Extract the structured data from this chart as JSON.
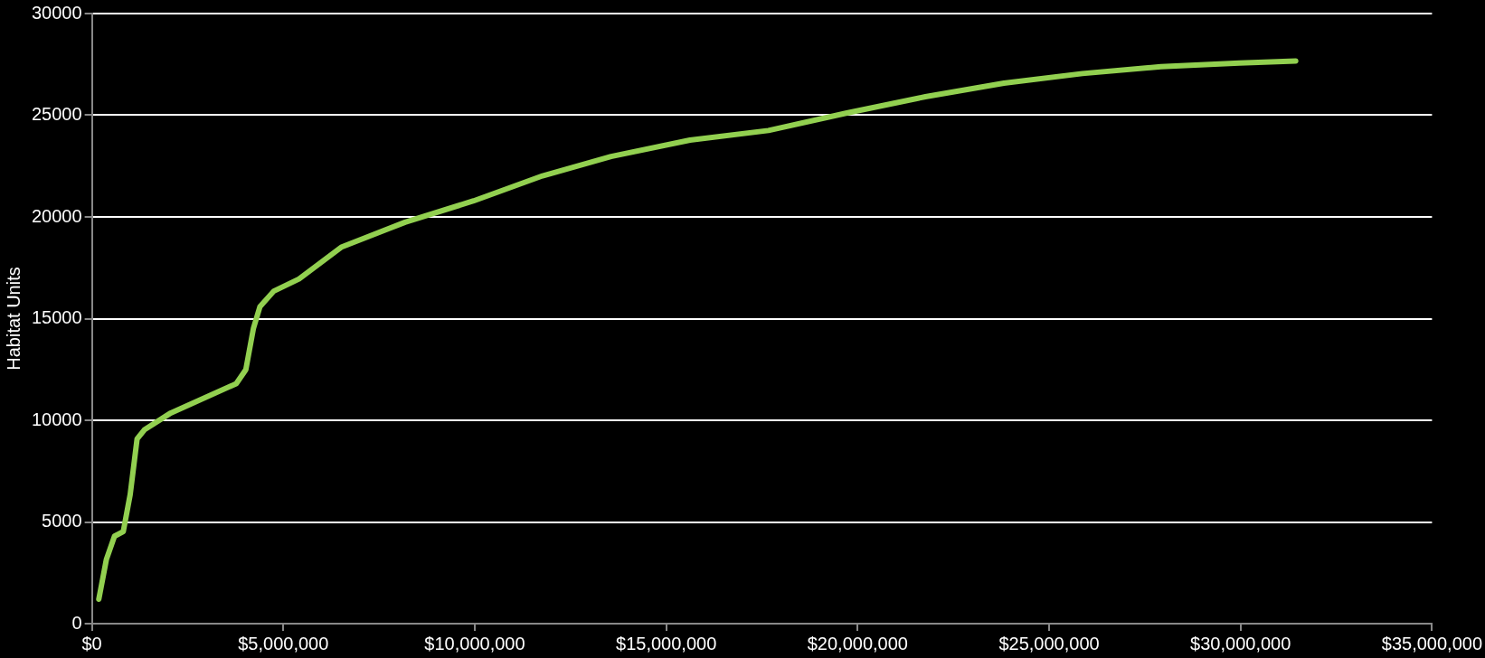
{
  "chart_data": {
    "type": "line",
    "ylabel": "Habitat Units",
    "x": [
      180000,
      380000,
      590000,
      820000,
      1000000,
      1180000,
      1370000,
      2060000,
      3770000,
      4020000,
      4220000,
      4390000,
      4750000,
      5410000,
      6510000,
      8180000,
      9970000,
      11770000,
      13560000,
      15620000,
      17670000,
      19720000,
      21770000,
      23820000,
      25870000,
      27920000,
      29970000,
      31440000
    ],
    "series": [
      {
        "color": "#92d050",
        "values": [
          1200,
          3170,
          4300,
          4530,
          6350,
          9080,
          9530,
          10360,
          11800,
          12490,
          14530,
          15590,
          16350,
          16950,
          18510,
          19740,
          20790,
          22020,
          22970,
          23780,
          24250,
          25110,
          25910,
          26580,
          27050,
          27390,
          27570,
          27670
        ]
      }
    ],
    "xlim": [
      0,
      35000000
    ],
    "xticks": [
      {
        "value": 0,
        "label": "$0"
      },
      {
        "value": 5000000,
        "label": "$5,000,000"
      },
      {
        "value": 10000000,
        "label": "$10,000,000"
      },
      {
        "value": 15000000,
        "label": "$15,000,000"
      },
      {
        "value": 20000000,
        "label": "$20,000,000"
      },
      {
        "value": 25000000,
        "label": "$25,000,000"
      },
      {
        "value": 30000000,
        "label": "$30,000,000"
      },
      {
        "value": 35000000,
        "label": "$35,000,000"
      }
    ],
    "ylim": [
      0,
      30000
    ],
    "yticks": [
      0,
      5000,
      10000,
      15000,
      20000,
      25000,
      30000
    ],
    "grid": "y",
    "marker": "none",
    "line_style": "solid",
    "legend": false
  }
}
